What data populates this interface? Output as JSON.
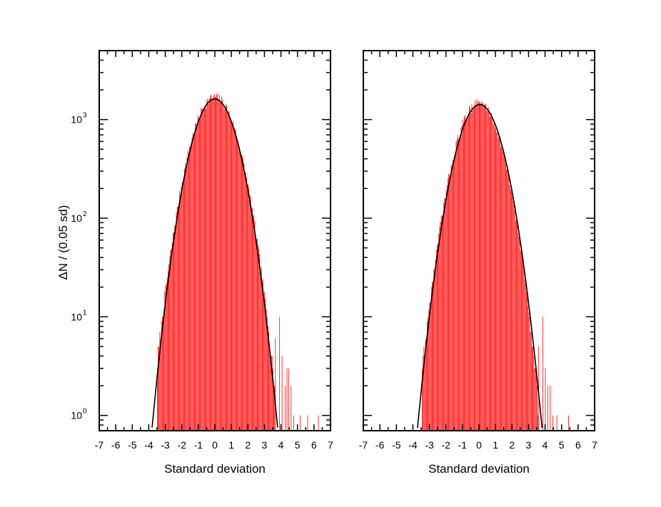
{
  "figure": {
    "ylabel": "ΔN / (0.05 sd)",
    "bin_width": 0.05,
    "bar_color": "#ff0000",
    "curve_color": "#000000",
    "grid": false
  },
  "chart_data": [
    {
      "type": "bar",
      "xlabel": "Standard deviation",
      "ylabel": "ΔN / (0.05 sd)",
      "xlim": [
        -7,
        7
      ],
      "x_ticks": [
        "-7",
        "-6",
        "-5",
        "-4",
        "-3",
        "-2",
        "-1",
        "0",
        "1",
        "2",
        "3",
        "4",
        "5",
        "6",
        "7"
      ],
      "ylim": [
        0.7,
        5000
      ],
      "yscale": "log",
      "y_ticks": [
        {
          "base": "10",
          "exp": "0",
          "value": 1
        },
        {
          "base": "10",
          "exp": "1",
          "value": 10
        },
        {
          "base": "10",
          "exp": "2",
          "value": 100
        },
        {
          "base": "10",
          "exp": "3",
          "value": 1000
        }
      ],
      "histogram": {
        "x_min": -3.5,
        "x_max": 6.3,
        "bin_width": 0.05,
        "peak_count": 1650,
        "core_sigma": 0.99,
        "outliers": [
          {
            "x": 3.65,
            "count": 6
          },
          {
            "x": 3.9,
            "count": 10
          },
          {
            "x": 4.05,
            "count": 4
          },
          {
            "x": 4.25,
            "count": 2
          },
          {
            "x": 4.35,
            "count": 3
          },
          {
            "x": 4.45,
            "count": 3
          },
          {
            "x": 4.6,
            "count": 2
          },
          {
            "x": 4.75,
            "count": 1
          },
          {
            "x": 5.15,
            "count": 1
          },
          {
            "x": 5.6,
            "count": 1
          },
          {
            "x": 6.25,
            "count": 1
          }
        ]
      },
      "fit_curve": {
        "type": "gaussian",
        "amplitude": 1620,
        "mean": 0.0,
        "sigma": 0.97
      }
    },
    {
      "type": "bar",
      "xlabel": "Standard deviation",
      "xlim": [
        -7,
        7
      ],
      "x_ticks": [
        "-7",
        "-6",
        "-5",
        "-4",
        "-3",
        "-2",
        "-1",
        "0",
        "1",
        "2",
        "3",
        "4",
        "5",
        "6",
        "7"
      ],
      "ylim": [
        0.7,
        5000
      ],
      "yscale": "log",
      "histogram": {
        "x_min": -3.45,
        "x_max": 5.5,
        "bin_width": 0.05,
        "peak_count": 1450,
        "core_sigma": 0.97,
        "outliers": [
          {
            "x": 3.6,
            "count": 5
          },
          {
            "x": 3.85,
            "count": 10
          },
          {
            "x": 4.0,
            "count": 3
          },
          {
            "x": 4.15,
            "count": 2
          },
          {
            "x": 4.3,
            "count": 2
          },
          {
            "x": 4.45,
            "count": 1
          },
          {
            "x": 4.7,
            "count": 1
          },
          {
            "x": 5.4,
            "count": 1
          }
        ]
      },
      "fit_curve": {
        "type": "gaussian",
        "amplitude": 1420,
        "mean": 0.05,
        "sigma": 0.97
      }
    }
  ]
}
